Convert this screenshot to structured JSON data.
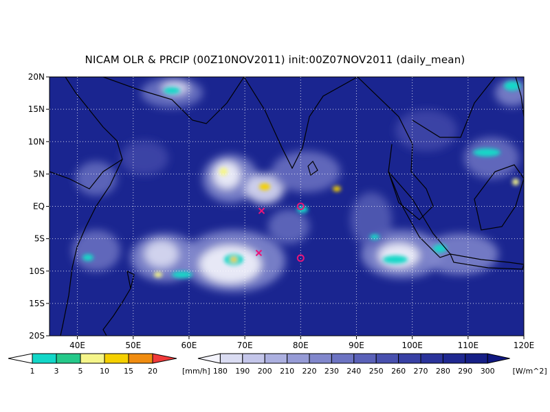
{
  "title": "NICAM OLR & PRCIP (00Z10NOV2011) init:00Z07NOV2011 (daily_mean)",
  "map": {
    "lon_range": [
      35,
      120
    ],
    "lat_range": [
      -20,
      20
    ],
    "y_ticks": [
      "20N",
      "15N",
      "10N",
      "5N",
      "EQ",
      "5S",
      "10S",
      "15S",
      "20S"
    ],
    "y_tick_values": [
      20,
      15,
      10,
      5,
      0,
      -5,
      -10,
      -15,
      -20
    ],
    "x_ticks": [
      "40E",
      "50E",
      "60E",
      "70E",
      "80E",
      "90E",
      "100E",
      "110E",
      "120E"
    ],
    "x_tick_values": [
      40,
      50,
      60,
      70,
      80,
      90,
      100,
      110,
      120
    ],
    "background_color": "#1a2590",
    "grid": "dotted",
    "markers": [
      {
        "type": "x",
        "lon": 73,
        "lat": -0.7,
        "color": "#e8157a"
      },
      {
        "type": "x",
        "lon": 72.5,
        "lat": -7.2,
        "color": "#e8157a"
      },
      {
        "type": "circle",
        "lon": 80,
        "lat": 0,
        "color": "#e8157a"
      },
      {
        "type": "circle",
        "lon": 80,
        "lat": -8,
        "color": "#e8157a"
      }
    ]
  },
  "precip_colorbar": {
    "labels": [
      "1",
      "3",
      "5",
      "10",
      "15",
      "20"
    ],
    "unit": "[mm/h]",
    "colors": [
      "#12d7c8",
      "#25c98a",
      "#f5f58a",
      "#f5d000",
      "#f08c10",
      "#f03a3a"
    ]
  },
  "olr_colorbar": {
    "labels": [
      "180",
      "190",
      "200",
      "210",
      "220",
      "230",
      "240",
      "250",
      "260",
      "270",
      "280",
      "290",
      "300"
    ],
    "unit": "[W/m^2]",
    "colors": [
      "#f4f4fc",
      "#dadcf2",
      "#c4c6ea",
      "#acb0e0",
      "#969bd6",
      "#8187cc",
      "#6c73c2",
      "#5a61b8",
      "#4850ae",
      "#3840a4",
      "#2a339a",
      "#1f2890",
      "#161f86",
      "#101880"
    ]
  }
}
